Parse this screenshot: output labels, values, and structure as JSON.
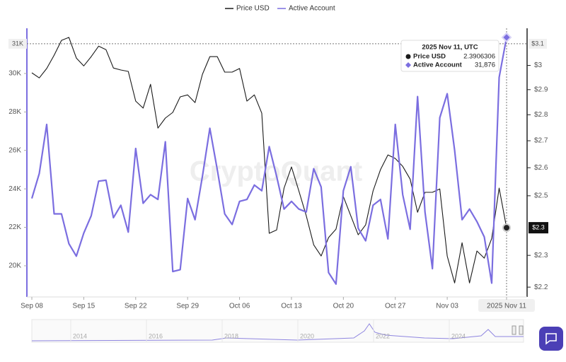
{
  "chart_data": {
    "type": "line",
    "watermark": "CryptoQuant",
    "categories": [
      "Sep 08",
      null,
      null,
      null,
      null,
      null,
      null,
      "Sep 15",
      null,
      null,
      null,
      null,
      null,
      null,
      "Sep 22",
      null,
      null,
      null,
      null,
      null,
      null,
      "Sep 29",
      null,
      null,
      null,
      null,
      null,
      null,
      "Oct 06",
      null,
      null,
      null,
      null,
      null,
      null,
      "Oct 13",
      null,
      null,
      null,
      null,
      null,
      null,
      "Oct 20",
      null,
      null,
      null,
      null,
      null,
      null,
      "Oct 27",
      null,
      null,
      null,
      null,
      null,
      null,
      "Nov 03",
      null,
      null,
      null,
      null,
      null,
      null,
      null,
      "2025 Nov 11"
    ],
    "series": [
      {
        "name": "Price USD",
        "color": "#1a1a1a",
        "axis": "y2",
        "values": [
          2.969,
          2.948,
          2.987,
          3.043,
          3.107,
          3.12,
          3.031,
          2.998,
          3.037,
          3.082,
          3.067,
          2.989,
          2.981,
          2.975,
          2.854,
          2.826,
          2.922,
          2.748,
          2.787,
          2.809,
          2.871,
          2.879,
          2.848,
          2.963,
          3.037,
          3.037,
          2.972,
          2.972,
          2.987,
          2.854,
          2.879,
          2.806,
          2.372,
          2.383,
          2.527,
          2.603,
          2.517,
          2.431,
          2.334,
          2.298,
          2.358,
          2.386,
          2.497,
          2.431,
          2.367,
          2.4,
          2.517,
          2.593,
          2.647,
          2.634,
          2.605,
          2.559,
          2.443,
          2.512,
          2.512,
          2.524,
          2.298,
          2.213,
          2.341,
          2.213,
          2.314,
          2.291,
          2.355,
          2.527,
          2.3906306
        ]
      },
      {
        "name": "Active Account",
        "color": "#7b6ee0",
        "values": [
          23500,
          24800,
          27350,
          22700,
          22700,
          21150,
          20500,
          21700,
          22600,
          24400,
          24450,
          22500,
          23150,
          21750,
          26100,
          23250,
          23700,
          23450,
          26450,
          19700,
          19800,
          23500,
          22400,
          24650,
          27150,
          25000,
          22700,
          22150,
          23350,
          23450,
          24200,
          23900,
          26200,
          24650,
          22950,
          23350,
          22950,
          22800,
          25050,
          24100,
          19650,
          19050,
          23900,
          25150,
          21950,
          21300,
          23150,
          23450,
          21400,
          27350,
          23700,
          21900,
          28800,
          22800,
          19850,
          27700,
          28950,
          26000,
          22400,
          22950,
          22300,
          21500,
          19100,
          29800,
          31876
        ]
      }
    ],
    "ylim": [
      18380,
      32350
    ],
    "yticks": [
      {
        "value": 20000,
        "label": "20K"
      },
      {
        "value": 22000,
        "label": "22K"
      },
      {
        "value": 24000,
        "label": "24K"
      },
      {
        "value": 26000,
        "label": "26K"
      },
      {
        "value": 28000,
        "label": "28K"
      },
      {
        "value": 30000,
        "label": "30K"
      }
    ],
    "y2lim": [
      2.17,
      3.16
    ],
    "y2_log": true,
    "y2ticks": [
      {
        "value": 2.2,
        "label": "$2.2"
      },
      {
        "value": 2.3,
        "label": "$2.3"
      },
      {
        "value": 2.5,
        "label": "$2.5"
      },
      {
        "value": 2.6,
        "label": "$2.6"
      },
      {
        "value": 2.7,
        "label": "$2.7"
      },
      {
        "value": 2.8,
        "label": "$2.8"
      },
      {
        "value": 2.9,
        "label": "$2.9"
      },
      {
        "value": 3,
        "label": "$3"
      }
    ],
    "grid": false,
    "legend": "top",
    "crosshair": {
      "left_label": "31K",
      "right_labels": [
        "$3.1",
        "$2.3"
      ]
    },
    "tooltip": {
      "title": "2025 Nov 11, UTC",
      "rows": [
        {
          "label": "Price USD",
          "value": "2.3906306"
        },
        {
          "label": "Active Account",
          "value": "31,876"
        }
      ]
    },
    "navigator": {
      "labels": [
        "2014",
        "2016",
        "2018",
        "2020",
        "2022",
        "2024"
      ]
    }
  }
}
